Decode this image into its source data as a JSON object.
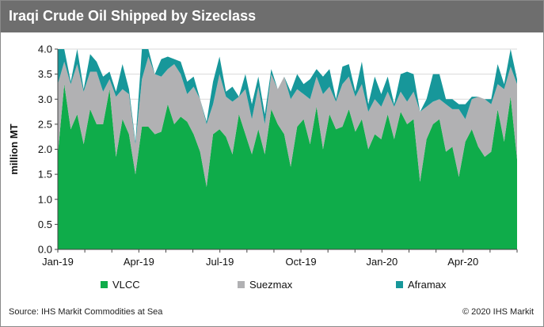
{
  "title": "Iraqi Crude Oil Shipped by Sizeclass",
  "source": "Source: IHS Markit Commodities at Sea",
  "copyright": "© 2020 IHS Markit",
  "colors": {
    "vlcc": "#0fac4a",
    "suezmax": "#b1b1b3",
    "aframax": "#17979a"
  },
  "chart_data": {
    "type": "area",
    "stacked": true,
    "ylabel": "million MT",
    "ylim": [
      0,
      4.0
    ],
    "yticks": [
      "0.0",
      "0.5",
      "1.0",
      "1.5",
      "2.0",
      "2.5",
      "3.0",
      "3.5",
      "4.0"
    ],
    "xticks": [
      "Jan-19",
      "Apr-19",
      "Jul-19",
      "Oct-19",
      "Jan-20",
      "Apr-20"
    ],
    "grid": true,
    "legend": "bottom",
    "series": [
      {
        "name": "VLCC",
        "values": [
          1.9,
          3.3,
          2.4,
          2.7,
          2.1,
          2.8,
          2.5,
          2.5,
          3.2,
          1.85,
          2.6,
          2.3,
          1.5,
          2.45,
          2.45,
          2.3,
          2.35,
          2.9,
          2.5,
          2.65,
          2.55,
          2.3,
          1.95,
          1.25,
          2.3,
          2.4,
          2.25,
          1.9,
          2.7,
          2.3,
          1.9,
          2.4,
          1.9,
          2.8,
          2.5,
          2.3,
          1.65,
          2.45,
          2.6,
          2.1,
          2.85,
          2.0,
          2.7,
          2.4,
          2.45,
          2.8,
          2.35,
          2.6,
          2.0,
          2.3,
          2.2,
          2.7,
          2.2,
          2.75,
          2.5,
          2.6,
          1.35,
          2.2,
          2.5,
          2.6,
          1.95,
          2.05,
          1.45,
          2.15,
          2.4,
          2.05,
          1.85,
          1.95,
          2.8,
          2.15,
          3.05,
          1.8
        ]
      },
      {
        "name": "Suezmax",
        "values": [
          1.4,
          0.45,
          0.9,
          1.0,
          1.05,
          0.75,
          1.05,
          0.65,
          0.2,
          1.2,
          0.6,
          0.8,
          0.6,
          0.95,
          1.4,
          1.2,
          1.1,
          0.7,
          1.2,
          0.85,
          0.55,
          0.95,
          1.05,
          1.25,
          0.6,
          1.1,
          0.8,
          1.05,
          0.35,
          0.9,
          0.7,
          0.85,
          0.6,
          0.7,
          0.7,
          1.15,
          1.35,
          0.75,
          0.5,
          0.9,
          0.6,
          1.1,
          0.55,
          0.55,
          0.85,
          0.65,
          0.7,
          0.7,
          0.75,
          0.7,
          0.65,
          0.45,
          0.65,
          0.4,
          0.45,
          0.55,
          1.4,
          0.65,
          0.45,
          0.4,
          0.95,
          0.75,
          1.35,
          0.45,
          0.6,
          1.0,
          1.15,
          0.95,
          0.5,
          1.05,
          0.6,
          1.5
        ]
      },
      {
        "name": "Aframax",
        "values": [
          0.7,
          0.25,
          0.05,
          0.3,
          0.05,
          0.35,
          0.2,
          0.3,
          0.15,
          0.1,
          0.5,
          0.1,
          0.05,
          0.6,
          0.15,
          0.0,
          0.35,
          0.25,
          0.1,
          0.25,
          0.25,
          0.2,
          0.0,
          0.05,
          0.45,
          0.35,
          0.1,
          0.3,
          0.0,
          0.3,
          0.3,
          0.2,
          0.2,
          0.1,
          0.0,
          0.0,
          0.15,
          0.3,
          0.2,
          0.4,
          0.15,
          0.35,
          0.35,
          0.05,
          0.35,
          0.25,
          0.1,
          0.45,
          0.15,
          0.45,
          0.25,
          0.3,
          0.05,
          0.35,
          0.6,
          0.35,
          0.0,
          0.15,
          0.55,
          0.5,
          0.1,
          0.2,
          0.1,
          0.3,
          0.05,
          0.0,
          0.0,
          0.1,
          0.4,
          0.1,
          0.35,
          0.1
        ]
      }
    ]
  }
}
